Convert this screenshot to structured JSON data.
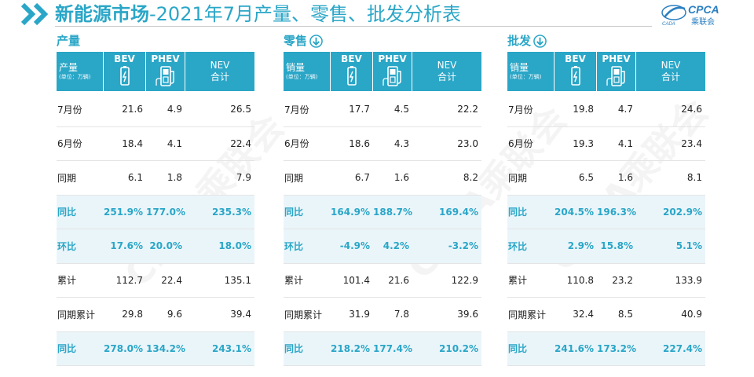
{
  "header": {
    "title_bold": "新能源市场",
    "title_rest": "-2021年7月产量、零售、批发分析表",
    "logo_text": "CPCA",
    "logo_subtext": "乘联会",
    "logo_small": "CADA",
    "accent_color": "#2aa6c7"
  },
  "columns": {
    "bev": "BEV",
    "phev": "PHEV",
    "nev_line1": "NEV",
    "nev_line2": "合计",
    "unit": "(单位：万辆)"
  },
  "sections": [
    {
      "label": "产量",
      "has_arrow": false,
      "corner_title": "产量",
      "rows": [
        {
          "label": "7月份",
          "bev": "21.6",
          "phev": "4.9",
          "nev": "26.5",
          "highlight": false
        },
        {
          "label": "6月份",
          "bev": "18.4",
          "phev": "4.1",
          "nev": "22.4",
          "highlight": false
        },
        {
          "label": "同期",
          "bev": "6.1",
          "phev": "1.8",
          "nev": "7.9",
          "highlight": false
        },
        {
          "label": "同比",
          "bev": "251.9%",
          "phev": "177.0%",
          "nev": "235.3%",
          "highlight": true
        },
        {
          "label": "环比",
          "bev": "17.6%",
          "phev": "20.0%",
          "nev": "18.0%",
          "highlight": true
        },
        {
          "label": "累计",
          "bev": "112.7",
          "phev": "22.4",
          "nev": "135.1",
          "highlight": false
        },
        {
          "label": "同期累计",
          "bev": "29.8",
          "phev": "9.6",
          "nev": "39.4",
          "highlight": false
        },
        {
          "label": "同比",
          "bev": "278.0%",
          "phev": "134.2%",
          "nev": "243.1%",
          "highlight": true
        }
      ]
    },
    {
      "label": "零售",
      "has_arrow": true,
      "corner_title": "销量",
      "rows": [
        {
          "label": "7月份",
          "bev": "17.7",
          "phev": "4.5",
          "nev": "22.2",
          "highlight": false
        },
        {
          "label": "6月份",
          "bev": "18.6",
          "phev": "4.3",
          "nev": "23.0",
          "highlight": false
        },
        {
          "label": "同期",
          "bev": "6.7",
          "phev": "1.6",
          "nev": "8.2",
          "highlight": false
        },
        {
          "label": "同比",
          "bev": "164.9%",
          "phev": "188.7%",
          "nev": "169.4%",
          "highlight": true
        },
        {
          "label": "环比",
          "bev": "-4.9%",
          "phev": "4.2%",
          "nev": "-3.2%",
          "highlight": true
        },
        {
          "label": "累计",
          "bev": "101.4",
          "phev": "21.6",
          "nev": "122.9",
          "highlight": false
        },
        {
          "label": "同期累计",
          "bev": "31.9",
          "phev": "7.8",
          "nev": "39.6",
          "highlight": false
        },
        {
          "label": "同比",
          "bev": "218.2%",
          "phev": "177.4%",
          "nev": "210.2%",
          "highlight": true
        }
      ]
    },
    {
      "label": "批发",
      "has_arrow": true,
      "corner_title": "销量",
      "rows": [
        {
          "label": "7月份",
          "bev": "19.8",
          "phev": "4.7",
          "nev": "24.6",
          "highlight": false
        },
        {
          "label": "6月份",
          "bev": "19.3",
          "phev": "4.1",
          "nev": "23.4",
          "highlight": false
        },
        {
          "label": "同期",
          "bev": "6.5",
          "phev": "1.6",
          "nev": "8.1",
          "highlight": false
        },
        {
          "label": "同比",
          "bev": "204.5%",
          "phev": "196.3%",
          "nev": "202.9%",
          "highlight": true
        },
        {
          "label": "环比",
          "bev": "2.9%",
          "phev": "15.8%",
          "nev": "5.1%",
          "highlight": true
        },
        {
          "label": "累计",
          "bev": "110.8",
          "phev": "23.2",
          "nev": "133.9",
          "highlight": false
        },
        {
          "label": "同期累计",
          "bev": "32.4",
          "phev": "8.5",
          "nev": "40.9",
          "highlight": false
        },
        {
          "label": "同比",
          "bev": "241.6%",
          "phev": "173.2%",
          "nev": "227.4%",
          "highlight": true
        }
      ]
    }
  ],
  "watermark_text": "CPCA乘联会"
}
